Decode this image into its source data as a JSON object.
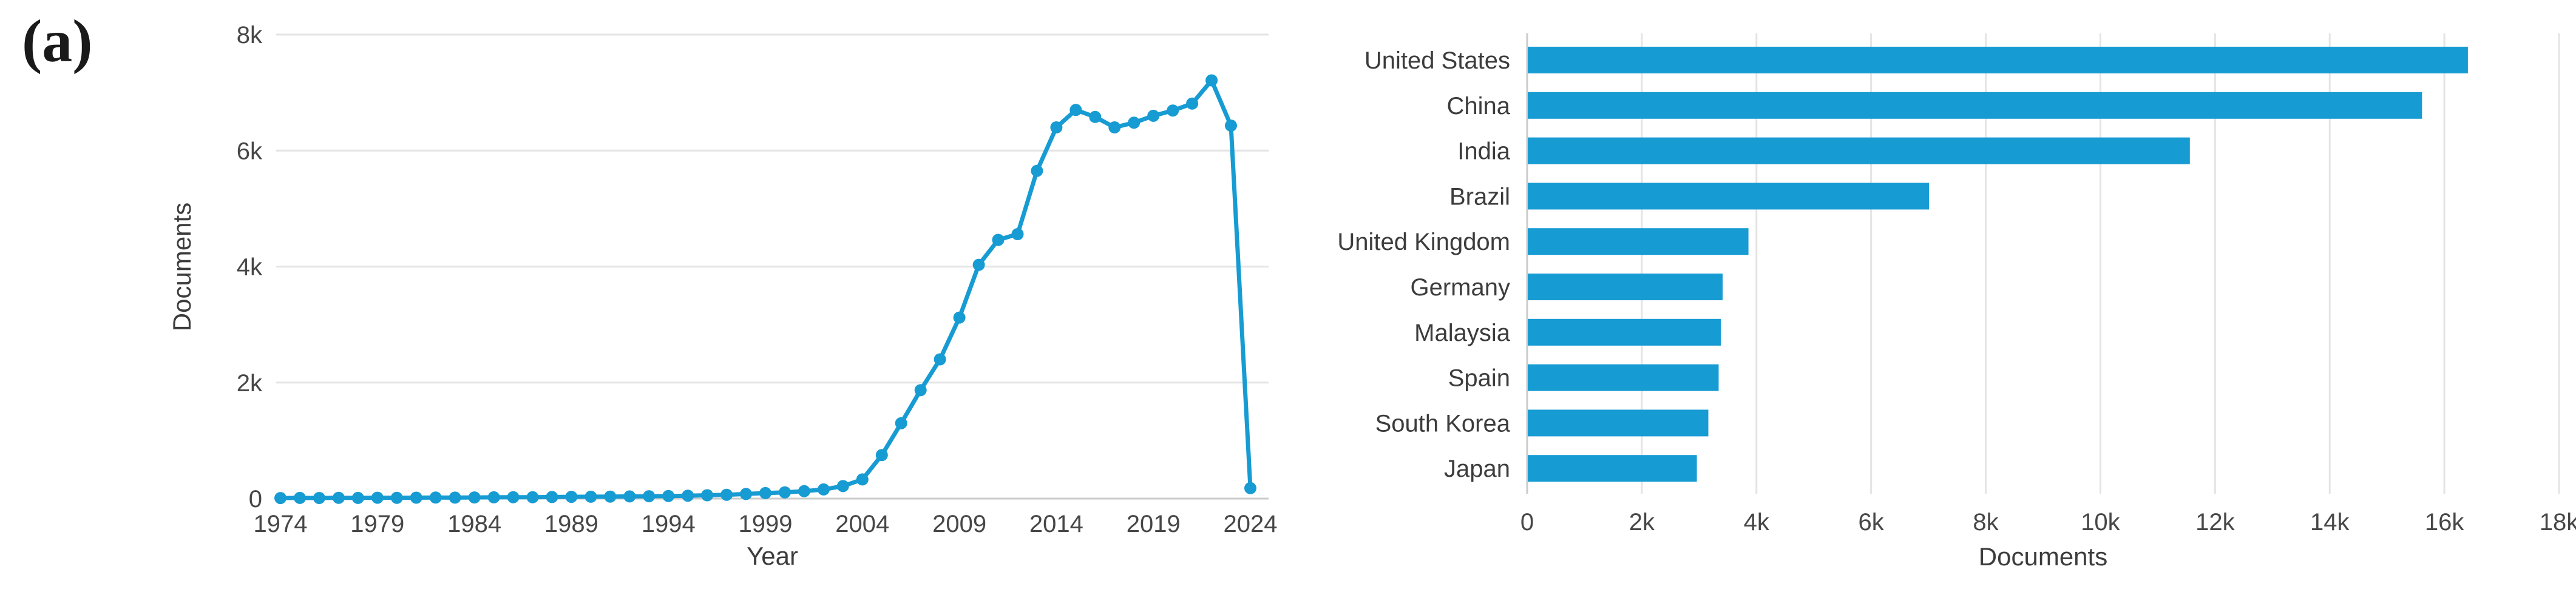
{
  "panel_label": "(a)",
  "colors": {
    "accent": "#179bd3",
    "grid": "#e4e4e4",
    "axis_line": "#cbcbcb",
    "tick_text": "#474747",
    "label_text": "#3c3c3c"
  },
  "chart_data": [
    {
      "type": "line",
      "title": "",
      "xlabel": "Year",
      "ylabel": "Documents",
      "xlim": [
        1973.8,
        2025
      ],
      "ylim": [
        0,
        8000
      ],
      "grid": "horizontal",
      "legend": "none",
      "marker": "circle",
      "xticks": [
        {
          "v": 1974,
          "label": "1974"
        },
        {
          "v": 1979,
          "label": "1979"
        },
        {
          "v": 1984,
          "label": "1984"
        },
        {
          "v": 1989,
          "label": "1989"
        },
        {
          "v": 1994,
          "label": "1994"
        },
        {
          "v": 1999,
          "label": "1999"
        },
        {
          "v": 2004,
          "label": "2004"
        },
        {
          "v": 2009,
          "label": "2009"
        },
        {
          "v": 2014,
          "label": "2014"
        },
        {
          "v": 2019,
          "label": "2019"
        },
        {
          "v": 2024,
          "label": "2024"
        }
      ],
      "yticks": [
        {
          "v": 0,
          "label": "0"
        },
        {
          "v": 2000,
          "label": "2k"
        },
        {
          "v": 4000,
          "label": "4k"
        },
        {
          "v": 6000,
          "label": "6k"
        },
        {
          "v": 8000,
          "label": "8k"
        }
      ],
      "x": [
        1974,
        1975,
        1976,
        1977,
        1978,
        1979,
        1980,
        1981,
        1982,
        1983,
        1984,
        1985,
        1986,
        1987,
        1988,
        1989,
        1990,
        1991,
        1992,
        1993,
        1994,
        1995,
        1996,
        1997,
        1998,
        1999,
        2000,
        2001,
        2002,
        2003,
        2004,
        2005,
        2006,
        2007,
        2008,
        2009,
        2010,
        2011,
        2012,
        2013,
        2014,
        2015,
        2016,
        2017,
        2018,
        2019,
        2020,
        2021,
        2022,
        2023,
        2024
      ],
      "values": [
        9,
        11,
        10,
        13,
        12,
        15,
        14,
        16,
        18,
        17,
        20,
        22,
        24,
        23,
        27,
        30,
        32,
        35,
        38,
        41,
        45,
        50,
        58,
        66,
        80,
        95,
        108,
        128,
        158,
        215,
        330,
        750,
        1300,
        1870,
        2400,
        3120,
        4030,
        4460,
        4560,
        5650,
        6400,
        6700,
        6580,
        6400,
        6480,
        6600,
        6690,
        6810,
        7210,
        6430,
        180
      ]
    },
    {
      "type": "bar",
      "orientation": "horizontal",
      "title": "",
      "xlabel": "Documents",
      "ylabel": "",
      "xlim": [
        0,
        18000
      ],
      "grid": "vertical",
      "legend": "none",
      "xticks": [
        {
          "v": 0,
          "label": "0"
        },
        {
          "v": 2000,
          "label": "2k"
        },
        {
          "v": 4000,
          "label": "4k"
        },
        {
          "v": 6000,
          "label": "6k"
        },
        {
          "v": 8000,
          "label": "8k"
        },
        {
          "v": 10000,
          "label": "10k"
        },
        {
          "v": 12000,
          "label": "12k"
        },
        {
          "v": 14000,
          "label": "14k"
        },
        {
          "v": 16000,
          "label": "16k"
        },
        {
          "v": 18000,
          "label": "18k"
        }
      ],
      "categories": [
        "United States",
        "China",
        "India",
        "Brazil",
        "United Kingdom",
        "Germany",
        "Malaysia",
        "Spain",
        "South Korea",
        "Japan"
      ],
      "values": [
        16400,
        15600,
        11550,
        7000,
        3850,
        3400,
        3370,
        3330,
        3150,
        2950
      ]
    }
  ]
}
